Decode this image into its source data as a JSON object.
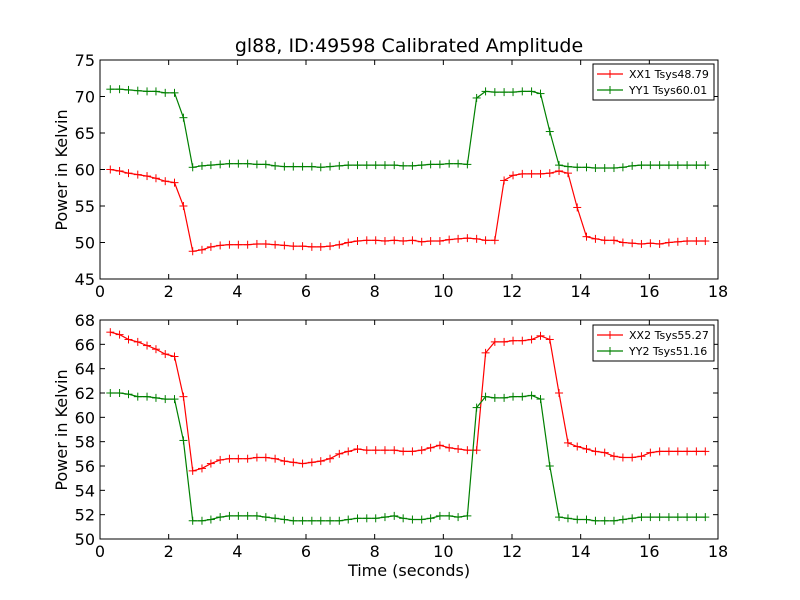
{
  "chart_data": [
    {
      "type": "line",
      "title": "gl88, ID:49598 Calibrated Amplitude",
      "xlabel": "",
      "ylabel": "Power in Kelvin",
      "xlim": [
        0,
        18
      ],
      "ylim": [
        45,
        75
      ],
      "x_ticks": [
        "0",
        "2",
        "4",
        "6",
        "8",
        "10",
        "12",
        "14",
        "16",
        "18"
      ],
      "y_ticks": [
        "45",
        "50",
        "55",
        "60",
        "65",
        "70",
        "75"
      ],
      "grid": false,
      "legend_placement": "top-right",
      "x": [
        0.3,
        0.57,
        0.83,
        1.1,
        1.37,
        1.63,
        1.9,
        2.17,
        2.43,
        2.7,
        2.97,
        3.23,
        3.5,
        3.77,
        4.03,
        4.3,
        4.57,
        4.83,
        5.1,
        5.37,
        5.63,
        5.9,
        6.17,
        6.43,
        6.7,
        6.97,
        7.23,
        7.5,
        7.77,
        8.03,
        8.3,
        8.57,
        8.83,
        9.1,
        9.37,
        9.63,
        9.9,
        10.17,
        10.43,
        10.7,
        10.97,
        11.23,
        11.5,
        11.77,
        12.03,
        12.3,
        12.57,
        12.83,
        13.1,
        13.37,
        13.63,
        13.9,
        14.17,
        14.43,
        14.7,
        14.97,
        15.23,
        15.5,
        15.77,
        16.03,
        16.3,
        16.57,
        16.83,
        17.1,
        17.37,
        17.63
      ],
      "series": [
        {
          "name": "XX1 Tsys48.79",
          "color": "#ff0000",
          "values": [
            60.0,
            59.8,
            59.5,
            59.3,
            59.1,
            58.8,
            58.4,
            58.2,
            55.0,
            48.8,
            49.0,
            49.4,
            49.6,
            49.7,
            49.7,
            49.7,
            49.8,
            49.8,
            49.7,
            49.6,
            49.5,
            49.5,
            49.4,
            49.4,
            49.5,
            49.7,
            50.0,
            50.2,
            50.3,
            50.3,
            50.2,
            50.3,
            50.2,
            50.3,
            50.1,
            50.2,
            50.2,
            50.4,
            50.5,
            50.6,
            50.5,
            50.3,
            50.3,
            58.5,
            59.2,
            59.4,
            59.4,
            59.4,
            59.5,
            59.8,
            59.5,
            54.8,
            50.8,
            50.5,
            50.3,
            50.3,
            50.0,
            49.9,
            49.8,
            49.9,
            49.8,
            50.0,
            50.1,
            50.2,
            50.2,
            50.2
          ]
        },
        {
          "name": "YY1 Tsys60.01",
          "color": "#008000",
          "values": [
            71.0,
            71.0,
            70.9,
            70.8,
            70.7,
            70.7,
            70.5,
            70.5,
            67.1,
            60.3,
            60.5,
            60.6,
            60.7,
            60.8,
            60.8,
            60.8,
            60.7,
            60.7,
            60.5,
            60.4,
            60.4,
            60.4,
            60.4,
            60.3,
            60.4,
            60.5,
            60.6,
            60.6,
            60.6,
            60.6,
            60.6,
            60.6,
            60.5,
            60.5,
            60.6,
            60.7,
            60.7,
            60.8,
            60.8,
            60.7,
            69.8,
            70.7,
            70.6,
            70.6,
            70.6,
            70.7,
            70.7,
            70.4,
            65.2,
            60.6,
            60.4,
            60.3,
            60.3,
            60.2,
            60.2,
            60.2,
            60.3,
            60.5,
            60.6,
            60.6,
            60.6,
            60.6,
            60.6,
            60.6,
            60.6,
            60.6
          ]
        }
      ]
    },
    {
      "type": "line",
      "title": "",
      "xlabel": "Time (seconds)",
      "ylabel": "Power in Kelvin",
      "xlim": [
        0,
        18
      ],
      "ylim": [
        50,
        68
      ],
      "x_ticks": [
        "0",
        "2",
        "4",
        "6",
        "8",
        "10",
        "12",
        "14",
        "16",
        "18"
      ],
      "y_ticks": [
        "50",
        "52",
        "54",
        "56",
        "58",
        "60",
        "62",
        "64",
        "66",
        "68"
      ],
      "grid": false,
      "legend_placement": "top-right",
      "x": [
        0.3,
        0.57,
        0.83,
        1.1,
        1.37,
        1.63,
        1.9,
        2.17,
        2.43,
        2.7,
        2.97,
        3.23,
        3.5,
        3.77,
        4.03,
        4.3,
        4.57,
        4.83,
        5.1,
        5.37,
        5.63,
        5.9,
        6.17,
        6.43,
        6.7,
        6.97,
        7.23,
        7.5,
        7.77,
        8.03,
        8.3,
        8.57,
        8.83,
        9.1,
        9.37,
        9.63,
        9.9,
        10.17,
        10.43,
        10.7,
        10.97,
        11.23,
        11.5,
        11.77,
        12.03,
        12.3,
        12.57,
        12.83,
        13.1,
        13.37,
        13.63,
        13.9,
        14.17,
        14.43,
        14.7,
        14.97,
        15.23,
        15.5,
        15.77,
        16.03,
        16.3,
        16.57,
        16.83,
        17.1,
        17.37,
        17.63
      ],
      "series": [
        {
          "name": "XX2 Tsys55.27",
          "color": "#ff0000",
          "values": [
            67.0,
            66.8,
            66.4,
            66.2,
            65.9,
            65.6,
            65.2,
            65.0,
            61.7,
            55.6,
            55.8,
            56.2,
            56.5,
            56.6,
            56.6,
            56.6,
            56.7,
            56.7,
            56.6,
            56.4,
            56.3,
            56.2,
            56.3,
            56.4,
            56.6,
            57.0,
            57.2,
            57.4,
            57.3,
            57.3,
            57.3,
            57.3,
            57.2,
            57.2,
            57.3,
            57.5,
            57.7,
            57.5,
            57.4,
            57.3,
            57.3,
            65.3,
            66.2,
            66.2,
            66.3,
            66.3,
            66.4,
            66.7,
            66.4,
            62.0,
            57.9,
            57.6,
            57.4,
            57.2,
            57.1,
            56.8,
            56.7,
            56.7,
            56.8,
            57.1,
            57.2,
            57.2,
            57.2,
            57.2,
            57.2,
            57.2
          ]
        },
        {
          "name": "YY2 Tsys51.16",
          "color": "#008000",
          "values": [
            62.0,
            62.0,
            61.9,
            61.7,
            61.7,
            61.6,
            61.5,
            61.5,
            58.1,
            51.5,
            51.5,
            51.6,
            51.8,
            51.9,
            51.9,
            51.9,
            51.9,
            51.8,
            51.7,
            51.6,
            51.5,
            51.5,
            51.5,
            51.5,
            51.5,
            51.5,
            51.6,
            51.7,
            51.7,
            51.7,
            51.8,
            51.9,
            51.7,
            51.6,
            51.6,
            51.7,
            51.9,
            51.9,
            51.8,
            51.9,
            60.8,
            61.7,
            61.6,
            61.6,
            61.7,
            61.7,
            61.8,
            61.5,
            56.0,
            51.8,
            51.7,
            51.6,
            51.6,
            51.5,
            51.5,
            51.5,
            51.6,
            51.7,
            51.8,
            51.8,
            51.8,
            51.8,
            51.8,
            51.8,
            51.8,
            51.8
          ]
        }
      ]
    }
  ]
}
